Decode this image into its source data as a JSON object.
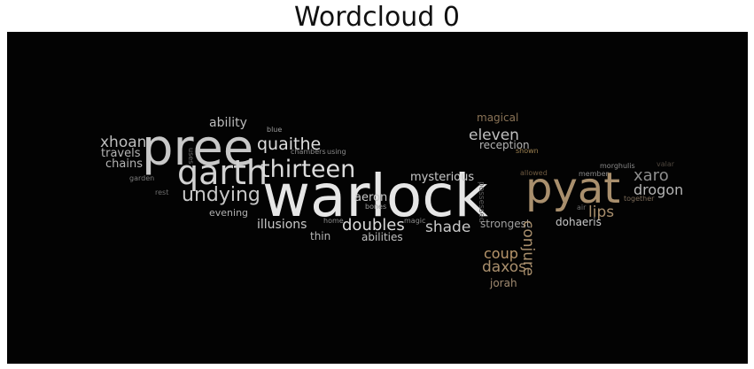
{
  "title": "Wordcloud 0",
  "words": [
    {
      "text": "warlock",
      "color": "#e6e6e6"
    },
    {
      "text": "pree",
      "color": "#c8c8c8"
    },
    {
      "text": "pyat",
      "color": "#a98f6d"
    },
    {
      "text": "qarth",
      "color": "#d2d2d2"
    },
    {
      "text": "thirteen",
      "color": "#dcdcdc"
    },
    {
      "text": "undying",
      "color": "#c8c8c8"
    },
    {
      "text": "quaithe",
      "color": "#dedede"
    },
    {
      "text": "xhoan",
      "color": "#bdbdbd"
    },
    {
      "text": "travels",
      "color": "#b4b4b4"
    },
    {
      "text": "chains",
      "color": "#b4b4b4"
    },
    {
      "text": "ability",
      "color": "#bcbcbc"
    },
    {
      "text": "blue",
      "color": "#9a9a9a"
    },
    {
      "text": "uses",
      "color": "#707070"
    },
    {
      "text": "chambers",
      "color": "#8a8a8a"
    },
    {
      "text": "using",
      "color": "#8a8a8a"
    },
    {
      "text": "garden",
      "color": "#7c7c7c"
    },
    {
      "text": "rest",
      "color": "#6e6e6e"
    },
    {
      "text": "evening",
      "color": "#b0b0b0"
    },
    {
      "text": "illusions",
      "color": "#c8c8c8"
    },
    {
      "text": "thin",
      "color": "#b4b4b4"
    },
    {
      "text": "home",
      "color": "#8a8a8a"
    },
    {
      "text": "aeron",
      "color": "#c8c8c8"
    },
    {
      "text": "bones",
      "color": "#9a9a9a"
    },
    {
      "text": "magic",
      "color": "#8a8a8a"
    },
    {
      "text": "mysterious",
      "color": "#c8c8c8"
    },
    {
      "text": "doubles",
      "color": "#dcdcdc"
    },
    {
      "text": "abilities",
      "color": "#c0c0c0"
    },
    {
      "text": "shade",
      "color": "#c8c8c8"
    },
    {
      "text": "possessed",
      "color": "#5a5a5a"
    },
    {
      "text": "strongest",
      "color": "#a0a0a0"
    },
    {
      "text": "magical",
      "color": "#8a7356"
    },
    {
      "text": "eleven",
      "color": "#c0c0c0"
    },
    {
      "text": "reception",
      "color": "#b4b4b4"
    },
    {
      "text": "shown",
      "color": "#9c8050"
    },
    {
      "text": "allowed",
      "color": "#6f5a40"
    },
    {
      "text": "conjure",
      "color": "#a98f6d"
    },
    {
      "text": "coup",
      "color": "#b8966b"
    },
    {
      "text": "daxos",
      "color": "#a98f6d"
    },
    {
      "text": "jorah",
      "color": "#a08a70"
    },
    {
      "text": "morghulis",
      "color": "#8a8a8a"
    },
    {
      "text": "member",
      "color": "#8a8a8a"
    },
    {
      "text": "valar",
      "color": "#4e463d"
    },
    {
      "text": "xaro",
      "color": "#8c8c8c"
    },
    {
      "text": "drogon",
      "color": "#b4b4b4"
    },
    {
      "text": "lips",
      "color": "#a98f6d"
    },
    {
      "text": "together",
      "color": "#7a6a58"
    },
    {
      "text": "air",
      "color": "#6e6e6e"
    },
    {
      "text": "dohaeris",
      "color": "#c8c8c8"
    }
  ]
}
